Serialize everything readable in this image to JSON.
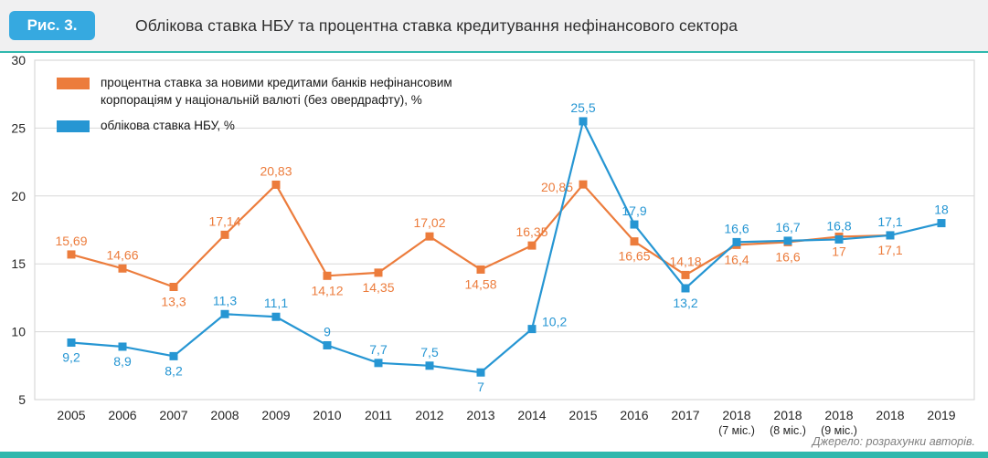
{
  "header": {
    "figure_label": "Рис. 3.",
    "title": "Облікова ставка НБУ та процентна ставка кредитування нефінансового сектора"
  },
  "footer": {
    "source": "Джерело: розрахунки авторів."
  },
  "colors": {
    "orange": "#EC7C3C",
    "blue": "#2696D3",
    "fig_box": "#36A9E0",
    "teal": "#2FB8AD",
    "header_bg": "#F0F0F1",
    "grid": "#D8D8D8",
    "tick_text": "#262626",
    "source_text": "#7F7F7F"
  },
  "chart_data": {
    "type": "line",
    "title": "Облікова ставка НБУ та процентна ставка кредитування нефінансового сектора",
    "grid": "horizontal",
    "legend_position": "top-left-inside",
    "y_axis": {
      "min": 5,
      "max": 30,
      "ticks": [
        5,
        10,
        15,
        20,
        25,
        30
      ]
    },
    "categories": [
      [
        "2005"
      ],
      [
        "2006"
      ],
      [
        "2007"
      ],
      [
        "2008"
      ],
      [
        "2009"
      ],
      [
        "2010"
      ],
      [
        "2011"
      ],
      [
        "2012"
      ],
      [
        "2013"
      ],
      [
        "2014"
      ],
      [
        "2015"
      ],
      [
        "2016"
      ],
      [
        "2017"
      ],
      [
        "2018",
        "(7 міс.)"
      ],
      [
        "2018",
        "(8 міс.)"
      ],
      [
        "2018",
        "(9 міс.)"
      ],
      [
        "2018"
      ],
      [
        "2019"
      ]
    ],
    "series": [
      {
        "name": "процентна ставка за новими кредитами банків нефінансовим корпораціям у національній валюті (без овердрафту), %",
        "color_key": "orange",
        "marker": "square",
        "values": [
          15.69,
          14.66,
          13.3,
          17.14,
          20.83,
          14.12,
          14.35,
          17.02,
          14.58,
          16.35,
          20.85,
          16.65,
          14.18,
          16.4,
          16.6,
          17,
          17.1,
          null
        ],
        "labels": [
          "15,69",
          "14,66",
          "13,3",
          "17,14",
          "20,83",
          "14,12",
          "14,35",
          "17,02",
          "14,58",
          "16,35",
          "20,85",
          "16,65",
          "14,18",
          "16,4",
          "16,6",
          "17",
          "17,1",
          ""
        ],
        "label_positions": [
          "above",
          "above",
          "below",
          "above",
          "above",
          "below",
          "below",
          "above",
          "below",
          "above",
          "left",
          "below",
          "above",
          "below",
          "below",
          "below",
          "below",
          ""
        ]
      },
      {
        "name": "облікова ставка НБУ, %",
        "color_key": "blue",
        "marker": "square",
        "values": [
          9.2,
          8.9,
          8.2,
          11.3,
          11.1,
          9,
          7.7,
          7.5,
          7,
          10.2,
          25.5,
          17.9,
          13.2,
          16.6,
          16.7,
          16.8,
          17.1,
          18
        ],
        "labels": [
          "9,2",
          "8,9",
          "8,2",
          "11,3",
          "11,1",
          "9",
          "7,7",
          "7,5",
          "7",
          "10,2",
          "25,5",
          "17,9",
          "13,2",
          "16,6",
          "16,7",
          "16,8",
          "17,1",
          "18"
        ],
        "label_positions": [
          "below",
          "below",
          "below",
          "above",
          "above",
          "above",
          "above",
          "above",
          "below",
          "right",
          "above",
          "above",
          "below",
          "above",
          "above",
          "above",
          "above",
          "above"
        ]
      }
    ],
    "legend": [
      {
        "color_key": "orange",
        "lines": [
          "процентна ставка за новими кредитами банків нефінансовим",
          "корпораціям у національній валюті (без овердрафту), %"
        ]
      },
      {
        "color_key": "blue",
        "lines": [
          "облікова ставка НБУ, %"
        ]
      }
    ]
  }
}
